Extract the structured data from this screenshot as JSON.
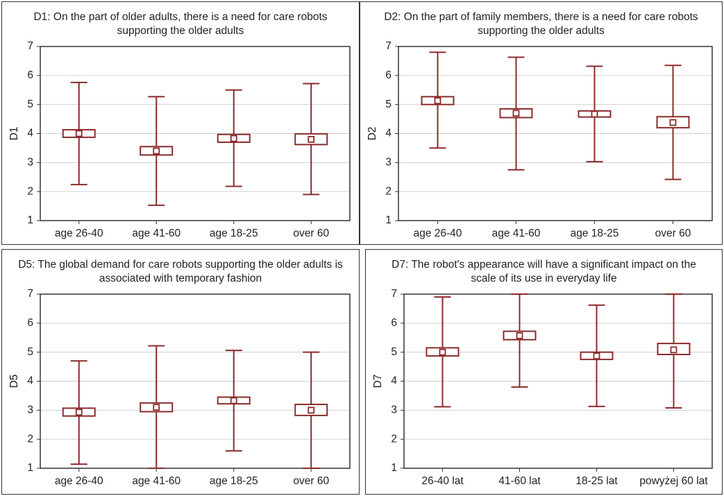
{
  "chart_data": [
    {
      "type": "box",
      "title": "D1: On the part of older adults, there is a need for care robots supporting the older adults",
      "ylabel": "D1",
      "color": "#8b2b2b",
      "categories": [
        "age 26-40",
        "age 41-60",
        "age 18-25",
        "over 60"
      ],
      "mean": [
        4.0,
        3.4,
        3.83,
        3.8
      ],
      "box_low": [
        3.87,
        3.26,
        3.7,
        3.62
      ],
      "box_high": [
        4.13,
        3.55,
        3.97,
        3.99
      ],
      "whisker_low": [
        2.24,
        1.53,
        2.18,
        1.9
      ],
      "whisker_high": [
        5.76,
        5.27,
        5.5,
        5.72
      ],
      "ylim": [
        1,
        7
      ],
      "yticks": [
        1,
        2,
        3,
        4,
        5,
        6,
        7
      ],
      "grid": true
    },
    {
      "type": "box",
      "title": "D2: On the part of family members, there is a need for care robots supporting the older adults",
      "ylabel": "D2",
      "color": "#8b2b2b",
      "categories": [
        "age 26-40",
        "age 41-60",
        "age 18-25",
        "over 60"
      ],
      "mean": [
        5.13,
        4.7,
        4.67,
        4.38
      ],
      "box_low": [
        5.0,
        4.55,
        4.57,
        4.2
      ],
      "box_high": [
        5.27,
        4.85,
        4.78,
        4.58
      ],
      "whisker_low": [
        3.5,
        2.75,
        3.03,
        2.42
      ],
      "whisker_high": [
        6.8,
        6.63,
        6.32,
        6.35
      ],
      "ylim": [
        1,
        7
      ],
      "yticks": [
        1,
        2,
        3,
        4,
        5,
        6,
        7
      ],
      "grid": true
    },
    {
      "type": "box",
      "title": "D5: The global demand for care robots supporting the older adults is associated with temporary fashion",
      "ylabel": "D5",
      "color": "#8b2b2b",
      "categories": [
        "age 26-40",
        "age 41-60",
        "age 18-25",
        "over 60"
      ],
      "mean": [
        2.93,
        3.1,
        3.33,
        3.0
      ],
      "box_low": [
        2.8,
        2.95,
        3.22,
        2.82
      ],
      "box_high": [
        3.07,
        3.25,
        3.45,
        3.2
      ],
      "whisker_low": [
        1.14,
        1.0,
        1.6,
        1.0
      ],
      "whisker_high": [
        4.7,
        5.22,
        5.06,
        5.0
      ],
      "ylim": [
        1,
        7
      ],
      "yticks": [
        1,
        2,
        3,
        4,
        5,
        6,
        7
      ],
      "grid": true
    },
    {
      "type": "box",
      "title": "D7: The robot's appearance will have a significant impact on the scale of its use in everyday life",
      "ylabel": "D7",
      "color": "#8b2b2b",
      "categories": [
        "26-40 lat",
        "41-60 lat",
        "18-25 lat",
        "powyżej 60 lat"
      ],
      "mean": [
        5.0,
        5.57,
        4.87,
        5.08
      ],
      "box_low": [
        4.87,
        5.43,
        4.75,
        4.92
      ],
      "box_high": [
        5.15,
        5.72,
        5.0,
        5.3
      ],
      "whisker_low": [
        3.12,
        3.8,
        3.13,
        3.08
      ],
      "whisker_high": [
        6.9,
        7.0,
        6.62,
        7.0
      ],
      "ylim": [
        1,
        7
      ],
      "yticks": [
        1,
        2,
        3,
        4,
        5,
        6,
        7
      ],
      "grid": true
    }
  ]
}
